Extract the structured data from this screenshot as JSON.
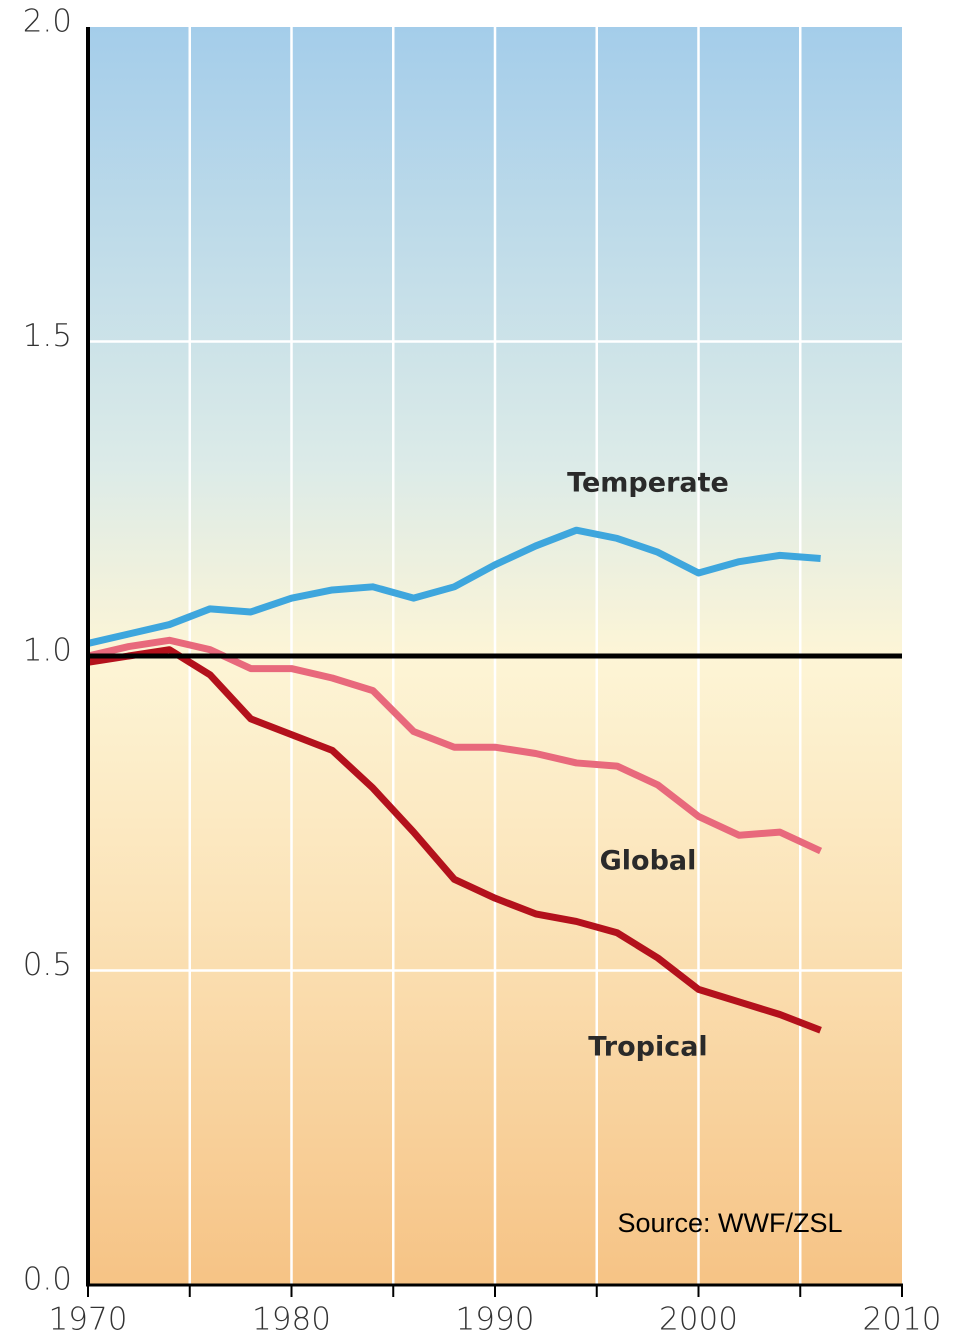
{
  "chart_data": {
    "type": "line",
    "x": [
      1970,
      1972,
      1974,
      1976,
      1978,
      1980,
      1982,
      1984,
      1986,
      1988,
      1990,
      1992,
      1994,
      1996,
      1998,
      2000,
      2002,
      2004,
      2006
    ],
    "series": [
      {
        "name": "Temperate",
        "color": "#3ea6dd",
        "values": [
          1.02,
          1.035,
          1.05,
          1.075,
          1.07,
          1.092,
          1.105,
          1.11,
          1.092,
          1.11,
          1.145,
          1.175,
          1.2,
          1.187,
          1.165,
          1.132,
          1.15,
          1.16,
          1.155
        ]
      },
      {
        "name": "Global",
        "color": "#e8697c",
        "values": [
          1.0,
          1.015,
          1.025,
          1.01,
          0.98,
          0.98,
          0.965,
          0.945,
          0.88,
          0.855,
          0.855,
          0.845,
          0.83,
          0.825,
          0.795,
          0.745,
          0.715,
          0.72,
          0.69
        ]
      },
      {
        "name": "Tropical",
        "color": "#b3111c",
        "values": [
          0.99,
          1.0,
          1.01,
          0.97,
          0.9,
          0.875,
          0.85,
          0.79,
          0.72,
          0.645,
          0.615,
          0.59,
          0.578,
          0.56,
          0.52,
          0.47,
          0.45,
          0.43,
          0.405
        ]
      }
    ],
    "xlim": [
      1970,
      2010
    ],
    "xticks": [
      1970,
      1980,
      1990,
      2000,
      2010
    ],
    "xminorticks": [
      1975,
      1985,
      1995,
      2005
    ],
    "ylim": [
      0,
      2
    ],
    "yticks": [
      {
        "value": 0,
        "label": "0.0"
      },
      0.5,
      {
        "value": 1,
        "label": "1.0"
      },
      1.5,
      {
        "value": 2,
        "label": "2.0"
      }
    ],
    "reference_line": 1,
    "grid": true,
    "source": "Source: WWF/ZSL"
  }
}
